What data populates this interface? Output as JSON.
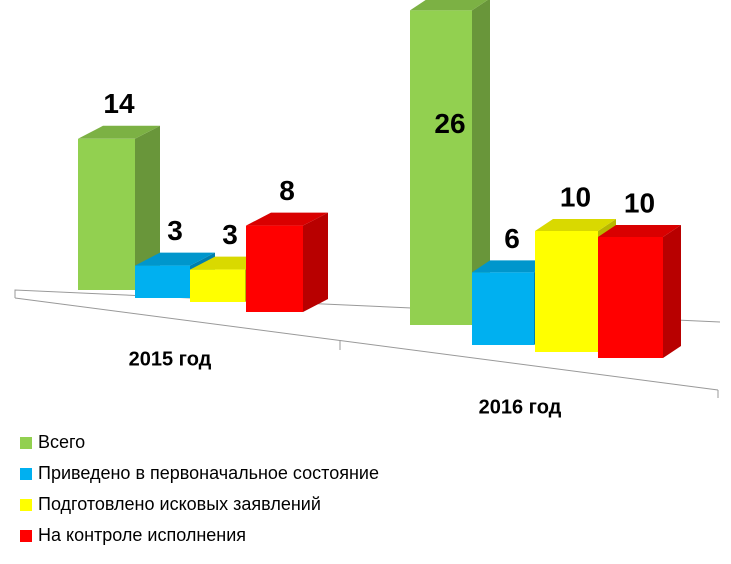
{
  "chart_data": {
    "type": "bar3d",
    "categories": [
      "2015 год",
      "2016 год"
    ],
    "series": [
      {
        "name": "Всего",
        "color": "#92d050",
        "values": [
          14,
          26
        ]
      },
      {
        "name": "Приведено в первоначальное состояние",
        "color": "#00b0f0",
        "values": [
          3,
          6
        ]
      },
      {
        "name": "Подготовлено исковых заявлений",
        "color": "#ffff00",
        "values": [
          3,
          10
        ]
      },
      {
        "name": "На контроле исполнения",
        "color": "#ff0000",
        "values": [
          8,
          10
        ]
      }
    ],
    "legend": "bottom-left"
  }
}
